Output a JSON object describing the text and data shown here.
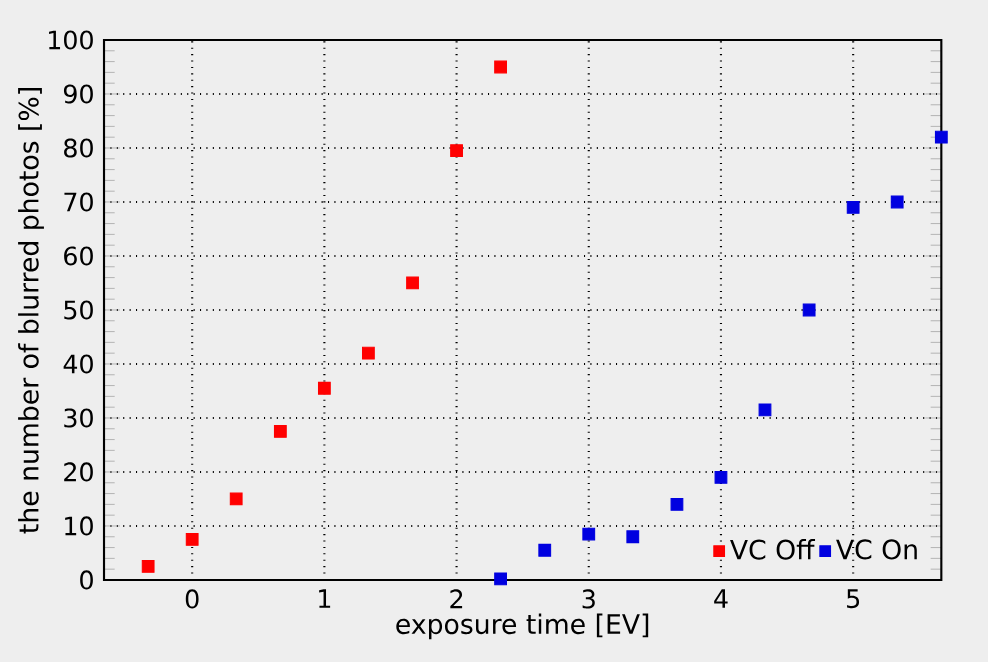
{
  "chart_data": {
    "type": "scatter",
    "xlabel": "exposure time [EV]",
    "ylabel": "the number of blurred photos [%]",
    "xlim": [
      -0.667,
      5.667
    ],
    "ylim": [
      0,
      100
    ],
    "xticks": [
      0,
      1,
      2,
      3,
      4,
      5
    ],
    "yticks": [
      0,
      10,
      20,
      30,
      40,
      50,
      60,
      70,
      80,
      90,
      100
    ],
    "grid": true,
    "legend": "bottom right",
    "marker": "square",
    "series": [
      {
        "name": "VC Off",
        "color": "#ff0000",
        "x": [
          -0.333,
          0,
          0.333,
          0.667,
          1,
          1.333,
          1.667,
          2,
          2.333
        ],
        "values": [
          2.5,
          7.5,
          15,
          27.5,
          35.5,
          42,
          55,
          79.5,
          95
        ]
      },
      {
        "name": "VC On",
        "color": "#0000e0",
        "x": [
          2.333,
          2.667,
          3,
          3.333,
          3.667,
          4,
          4.333,
          4.667,
          5,
          5.333,
          5.667
        ],
        "values": [
          0.2,
          5.5,
          8.5,
          8,
          14,
          19,
          31.5,
          50,
          69,
          70,
          82
        ]
      }
    ]
  }
}
